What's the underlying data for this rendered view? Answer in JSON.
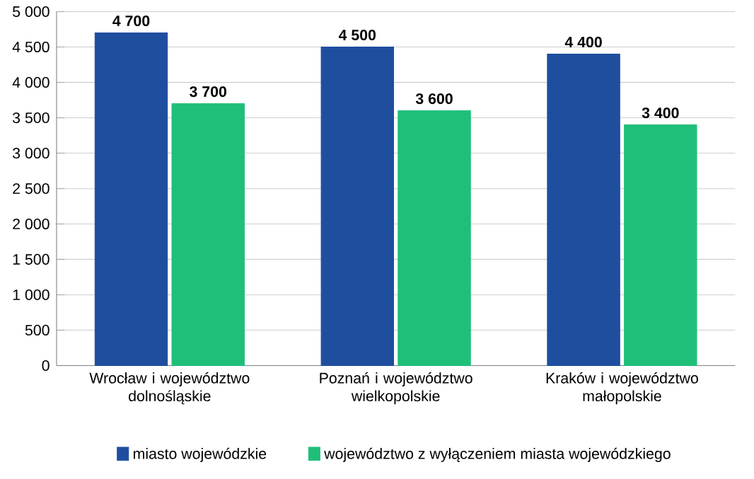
{
  "chart_data": {
    "type": "bar",
    "categories": [
      "Wrocław i województwo dolnośląskie",
      "Poznań i województwo wielkopolskie",
      "Kraków i województwo małopolskie"
    ],
    "series": [
      {
        "name": "miasto wojewódzkie",
        "color": "#1f4e9f",
        "values": [
          4700,
          4500,
          4400
        ],
        "value_labels": [
          "4 700",
          "4 500",
          "4 400"
        ]
      },
      {
        "name": "województwo z wyłączeniem miasta wojewódzkiego",
        "color": "#1fbf7a",
        "values": [
          3700,
          3600,
          3400
        ],
        "value_labels": [
          "3 700",
          "3 600",
          "3 400"
        ]
      }
    ],
    "ylim": [
      0,
      5000
    ],
    "yticks": [
      0,
      500,
      {
        "value": 1000,
        "label": "1 000"
      },
      {
        "value": 1500,
        "label": "1 500"
      },
      {
        "value": 2000,
        "label": "2 000"
      },
      {
        "value": 2500,
        "label": "2 500"
      },
      {
        "value": 3000,
        "label": "3 000"
      },
      {
        "value": 3500,
        "label": "3 500"
      },
      {
        "value": 4000,
        "label": "4 000"
      },
      {
        "value": 4500,
        "label": "4 500"
      },
      {
        "value": 5000,
        "label": "5 000"
      }
    ],
    "grid": "y",
    "legend": "bottom"
  }
}
